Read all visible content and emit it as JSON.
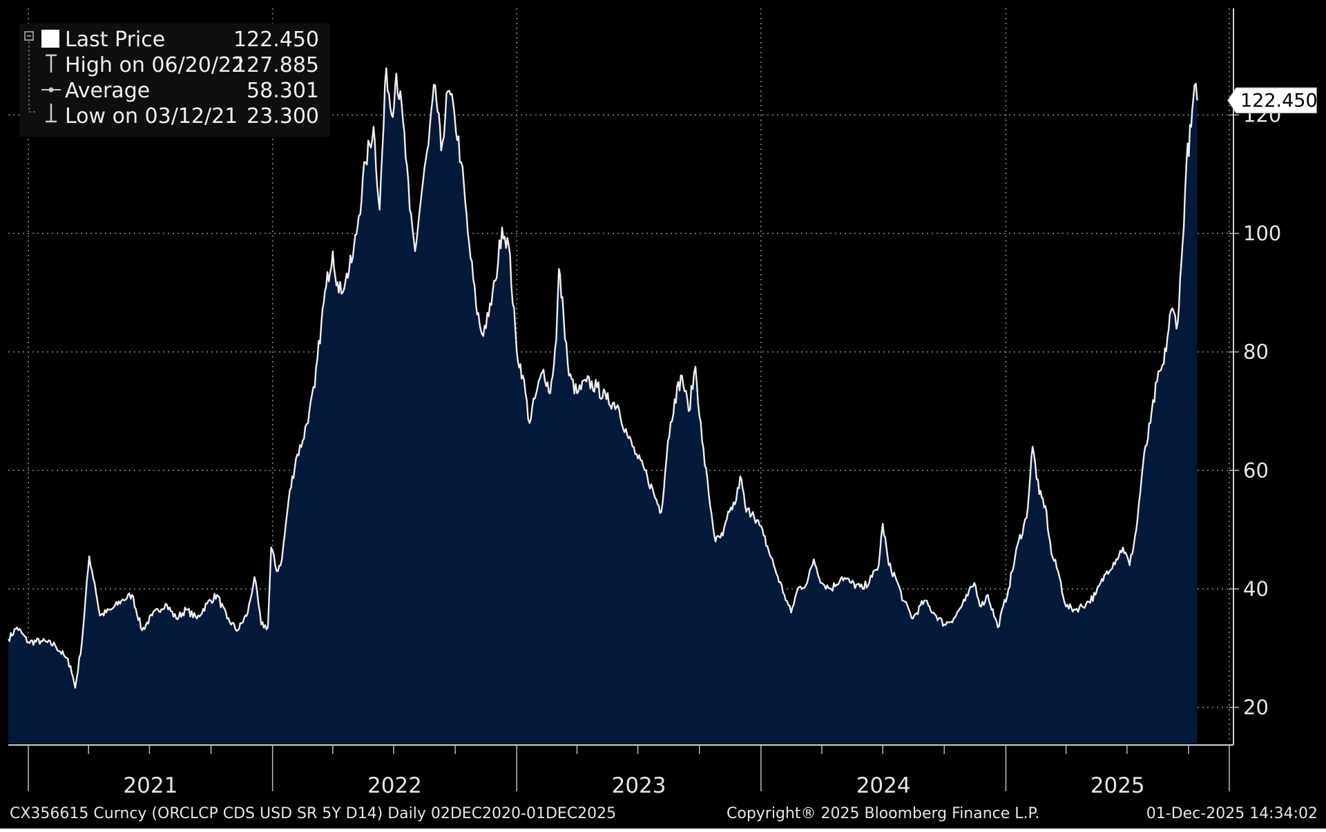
{
  "chart_data": {
    "type": "area",
    "title": "",
    "xlabel": "",
    "ylabel": "",
    "x_range": [
      "2020-12-02",
      "2025-12-01"
    ],
    "ylim": [
      14,
      138
    ],
    "y_ticks": [
      20,
      40,
      60,
      80,
      100,
      120
    ],
    "year_labels": [
      "2021",
      "2022",
      "2023",
      "2024",
      "2025"
    ],
    "grid": true,
    "legend_position": "top-left",
    "colors": {
      "background": "#000000",
      "area_fill": "#03193a",
      "line": "#f0f0f0",
      "grid": "#8a8a8a",
      "text": "#e6e6e6",
      "last_price_box": "#ffffff"
    },
    "legend": [
      {
        "label": "Last Price",
        "value": "122.450",
        "icon": "white-square-icon"
      },
      {
        "label": "High on 06/20/22",
        "value": "127.885",
        "icon": "high-marker-icon"
      },
      {
        "label": "Average",
        "value": "58.301",
        "icon": "average-marker-icon"
      },
      {
        "label": "Low on 03/12/21",
        "value": "23.300",
        "icon": "low-marker-icon"
      }
    ],
    "last_price_label": "122.450",
    "series": [
      {
        "values": [
          [
            "2020-12-02",
            31.5
          ],
          [
            "2020-12-15",
            33.5
          ],
          [
            "2021-01-01",
            31.0
          ],
          [
            "2021-01-20",
            31.2
          ],
          [
            "2021-02-10",
            30.5
          ],
          [
            "2021-02-25",
            28.5
          ],
          [
            "2021-03-05",
            27.0
          ],
          [
            "2021-03-12",
            23.3
          ],
          [
            "2021-03-22",
            31.0
          ],
          [
            "2021-04-02",
            45.5
          ],
          [
            "2021-04-10",
            41.0
          ],
          [
            "2021-04-18",
            35.5
          ],
          [
            "2021-05-05",
            36.5
          ],
          [
            "2021-05-20",
            38.0
          ],
          [
            "2021-06-05",
            39.0
          ],
          [
            "2021-06-20",
            33.0
          ],
          [
            "2021-07-05",
            35.5
          ],
          [
            "2021-07-25",
            37.5
          ],
          [
            "2021-08-10",
            35.0
          ],
          [
            "2021-08-25",
            36.5
          ],
          [
            "2021-09-10",
            35.0
          ],
          [
            "2021-09-25",
            37.5
          ],
          [
            "2021-10-10",
            39.0
          ],
          [
            "2021-10-25",
            35.0
          ],
          [
            "2021-11-10",
            33.0
          ],
          [
            "2021-11-25",
            36.0
          ],
          [
            "2021-12-05",
            42.0
          ],
          [
            "2021-12-15",
            34.0
          ],
          [
            "2021-12-25",
            33.5
          ],
          [
            "2021-12-30",
            47.0
          ],
          [
            "2022-01-07",
            43.0
          ],
          [
            "2022-01-15",
            45.0
          ],
          [
            "2022-01-25",
            55.0
          ],
          [
            "2022-02-05",
            62.0
          ],
          [
            "2022-02-15",
            65.0
          ],
          [
            "2022-02-25",
            70.0
          ],
          [
            "2022-03-05",
            74.0
          ],
          [
            "2022-03-15",
            85.0
          ],
          [
            "2022-03-22",
            91.0
          ],
          [
            "2022-04-01",
            97.0
          ],
          [
            "2022-04-10",
            90.0
          ],
          [
            "2022-04-20",
            92.0
          ],
          [
            "2022-05-01",
            96.0
          ],
          [
            "2022-05-10",
            103.0
          ],
          [
            "2022-05-20",
            112.0
          ],
          [
            "2022-06-01",
            118.0
          ],
          [
            "2022-06-10",
            104.0
          ],
          [
            "2022-06-20",
            127.9
          ],
          [
            "2022-06-28",
            120.0
          ],
          [
            "2022-07-05",
            127.0
          ],
          [
            "2022-07-15",
            119.0
          ],
          [
            "2022-07-25",
            104.0
          ],
          [
            "2022-08-02",
            97.0
          ],
          [
            "2022-08-12",
            107.0
          ],
          [
            "2022-08-22",
            115.0
          ],
          [
            "2022-09-01",
            125.0
          ],
          [
            "2022-09-10",
            114.0
          ],
          [
            "2022-09-20",
            124.0
          ],
          [
            "2022-09-30",
            120.0
          ],
          [
            "2022-10-10",
            112.0
          ],
          [
            "2022-10-20",
            100.0
          ],
          [
            "2022-11-01",
            88.0
          ],
          [
            "2022-11-10",
            83.0
          ],
          [
            "2022-11-20",
            86.0
          ],
          [
            "2022-11-30",
            92.0
          ],
          [
            "2022-12-10",
            101.0
          ],
          [
            "2022-12-20",
            98.0
          ],
          [
            "2023-01-01",
            80.0
          ],
          [
            "2023-01-10",
            76.0
          ],
          [
            "2023-01-20",
            68.0
          ],
          [
            "2023-01-30",
            73.0
          ],
          [
            "2023-02-10",
            77.0
          ],
          [
            "2023-02-20",
            73.0
          ],
          [
            "2023-03-01",
            82.0
          ],
          [
            "2023-03-05",
            94.0
          ],
          [
            "2023-03-12",
            86.0
          ],
          [
            "2023-03-20",
            76.0
          ],
          [
            "2023-04-01",
            73.0
          ],
          [
            "2023-04-15",
            75.0
          ],
          [
            "2023-05-01",
            74.0
          ],
          [
            "2023-05-15",
            72.0
          ],
          [
            "2023-06-01",
            71.0
          ],
          [
            "2023-06-15",
            66.0
          ],
          [
            "2023-07-01",
            62.0
          ],
          [
            "2023-07-15",
            59.0
          ],
          [
            "2023-07-25",
            56.0
          ],
          [
            "2023-08-05",
            53.0
          ],
          [
            "2023-08-15",
            65.0
          ],
          [
            "2023-08-25",
            72.0
          ],
          [
            "2023-09-05",
            76.0
          ],
          [
            "2023-09-15",
            70.0
          ],
          [
            "2023-09-25",
            77.5
          ],
          [
            "2023-10-05",
            65.0
          ],
          [
            "2023-10-15",
            56.0
          ],
          [
            "2023-10-25",
            48.0
          ],
          [
            "2023-11-05",
            49.0
          ],
          [
            "2023-11-15",
            53.0
          ],
          [
            "2023-11-25",
            55.0
          ],
          [
            "2023-12-01",
            59.0
          ],
          [
            "2023-12-10",
            53.0
          ],
          [
            "2023-12-20",
            53.0
          ],
          [
            "2024-01-05",
            49.0
          ],
          [
            "2024-01-20",
            44.0
          ],
          [
            "2024-02-05",
            39.0
          ],
          [
            "2024-02-15",
            36.0
          ],
          [
            "2024-02-25",
            40.0
          ],
          [
            "2024-03-10",
            41.0
          ],
          [
            "2024-03-20",
            45.0
          ],
          [
            "2024-04-01",
            41.0
          ],
          [
            "2024-04-15",
            40.0
          ],
          [
            "2024-05-01",
            42.0
          ],
          [
            "2024-05-15",
            41.0
          ],
          [
            "2024-06-01",
            40.0
          ],
          [
            "2024-06-15",
            42.0
          ],
          [
            "2024-06-25",
            44.0
          ],
          [
            "2024-07-01",
            51.0
          ],
          [
            "2024-07-10",
            44.0
          ],
          [
            "2024-07-20",
            42.0
          ],
          [
            "2024-08-01",
            38.0
          ],
          [
            "2024-08-15",
            35.0
          ],
          [
            "2024-09-01",
            38.0
          ],
          [
            "2024-09-15",
            36.0
          ],
          [
            "2024-10-01",
            34.0
          ],
          [
            "2024-10-15",
            35.0
          ],
          [
            "2024-11-01",
            38.0
          ],
          [
            "2024-11-15",
            41.0
          ],
          [
            "2024-11-25",
            37.0
          ],
          [
            "2024-12-05",
            39.0
          ],
          [
            "2024-12-20",
            33.5
          ],
          [
            "2025-01-05",
            40.0
          ],
          [
            "2025-01-20",
            48.0
          ],
          [
            "2025-02-01",
            52.0
          ],
          [
            "2025-02-10",
            64.0
          ],
          [
            "2025-02-20",
            56.0
          ],
          [
            "2025-03-01",
            54.0
          ],
          [
            "2025-03-10",
            46.0
          ],
          [
            "2025-03-20",
            43.0
          ],
          [
            "2025-04-01",
            37.0
          ],
          [
            "2025-04-15",
            36.5
          ],
          [
            "2025-05-01",
            37.5
          ],
          [
            "2025-05-15",
            39.0
          ],
          [
            "2025-06-01",
            43.0
          ],
          [
            "2025-06-15",
            45.0
          ],
          [
            "2025-06-25",
            47.0
          ],
          [
            "2025-07-05",
            44.0
          ],
          [
            "2025-07-15",
            50.0
          ],
          [
            "2025-07-25",
            61.0
          ],
          [
            "2025-08-05",
            68.0
          ],
          [
            "2025-08-15",
            75.0
          ],
          [
            "2025-08-25",
            78.0
          ],
          [
            "2025-09-05",
            87.0
          ],
          [
            "2025-09-15",
            85.0
          ],
          [
            "2025-09-22",
            98.0
          ],
          [
            "2025-09-28",
            112.0
          ],
          [
            "2025-10-05",
            118.0
          ],
          [
            "2025-10-10",
            125.0
          ],
          [
            "2025-10-14",
            122.45
          ]
        ]
      }
    ]
  },
  "footer": {
    "left": "CX356615 Curncy (ORCLCP CDS USD SR 5Y D14) Daily 02DEC2020-01DEC2025",
    "center": "Copyright® 2025 Bloomberg Finance L.P.",
    "right": "01-Dec-2025 14:34:02"
  }
}
